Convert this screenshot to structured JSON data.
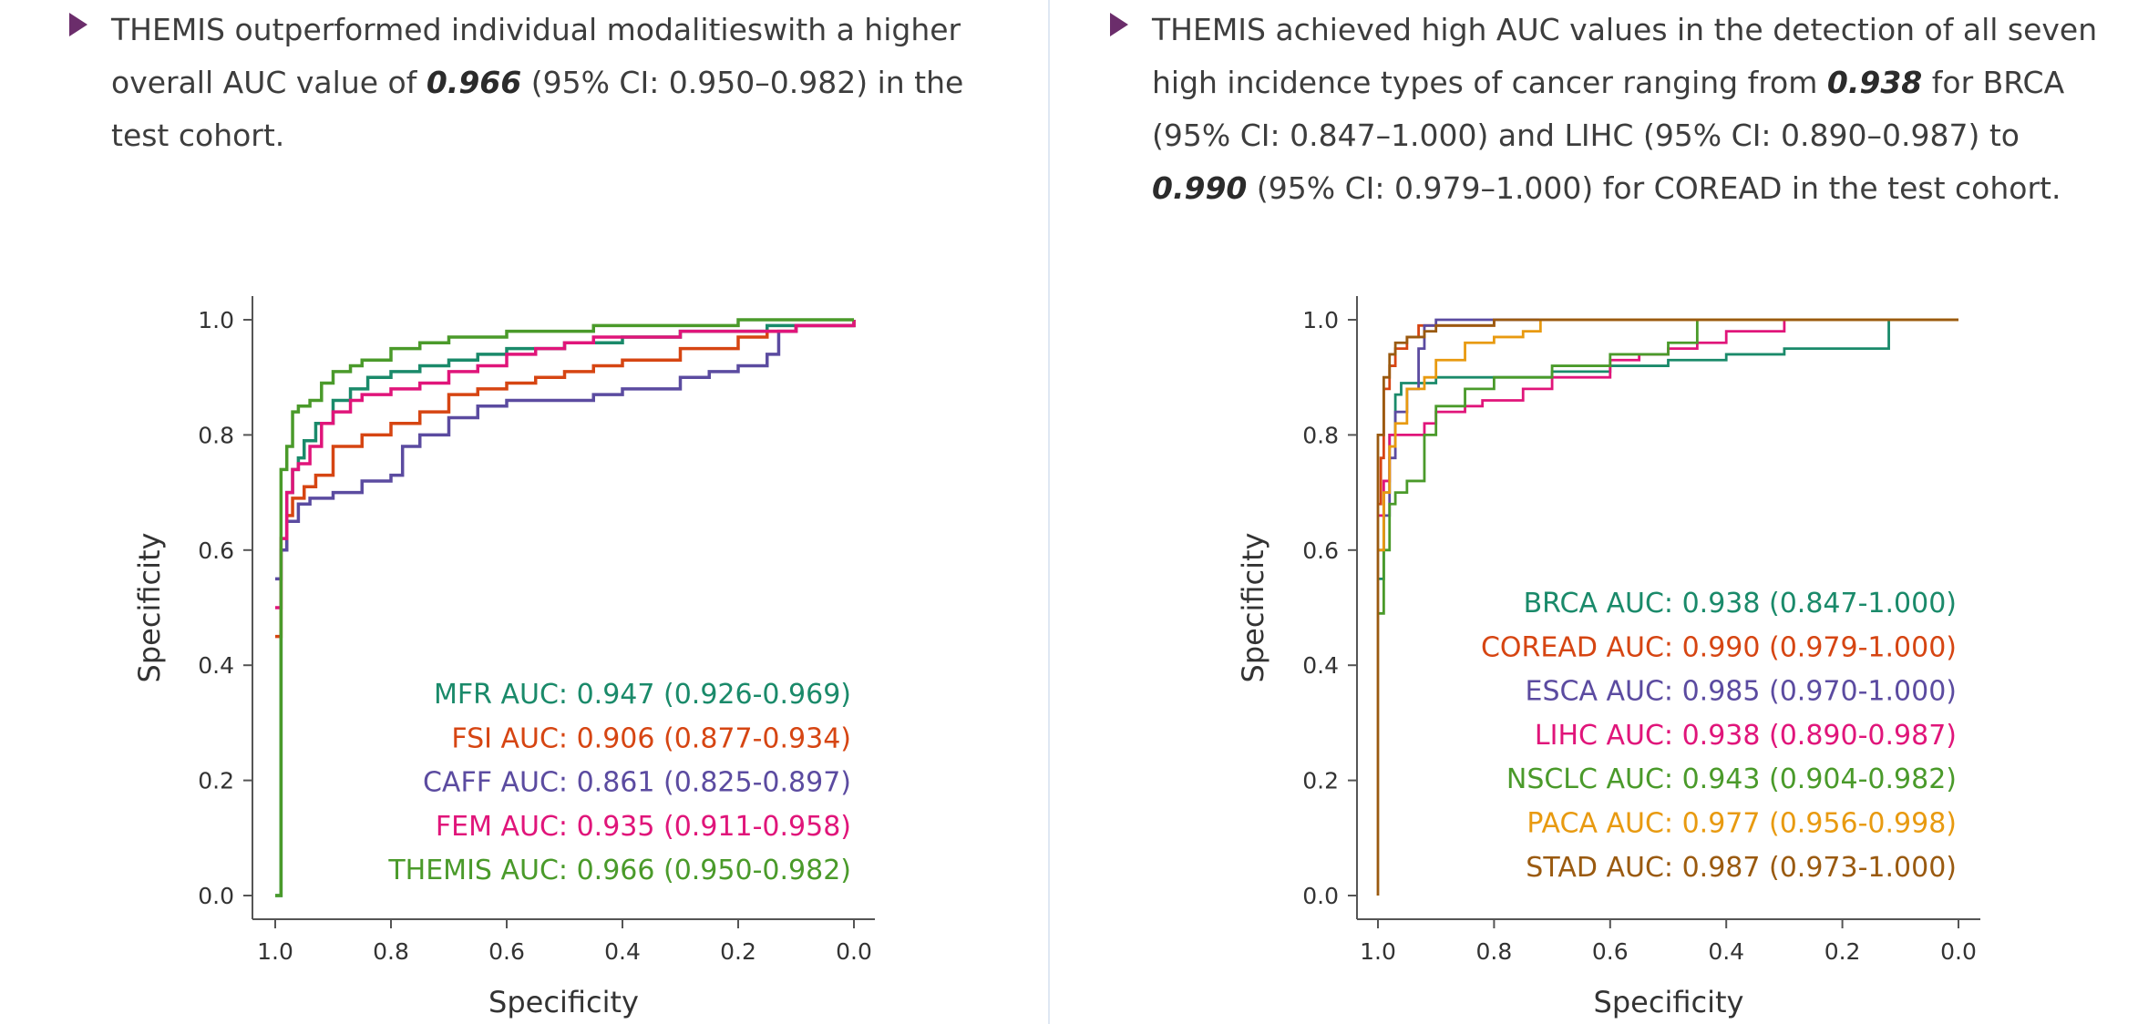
{
  "left": {
    "text_parts": [
      "THEMIS outperformed individual modalitieswith a higher overall AUC value of ",
      "0.966",
      " (95% CI: 0.950–0.982) in the test cohort."
    ]
  },
  "right": {
    "text_parts": [
      "THEMIS achieved high AUC values in the detection of all seven high incidence types of cancer ranging from ",
      "0.938",
      " for BRCA (95% CI: 0.847–1.000) and LIHC (95% CI: 0.890–0.987) to ",
      "0.990",
      " (95% CI: 0.979–1.000) for COREAD in the test cohort."
    ]
  },
  "chart_data": [
    {
      "type": "line",
      "xlabel": "Specificity",
      "ylabel": "Specificity",
      "xlim": [
        1.0,
        0.0
      ],
      "ylim": [
        0.0,
        1.0
      ],
      "xticks": [
        "1.0",
        "0.8",
        "0.6",
        "0.4",
        "0.2",
        "0.0"
      ],
      "yticks": [
        "0.0",
        "0.2",
        "0.4",
        "0.6",
        "0.8",
        "1.0"
      ],
      "legend_position": "bottom-right",
      "series": [
        {
          "name": "MFR",
          "label": "MFR AUC: 0.947 (0.926-0.969)",
          "color": "#1a8a6a",
          "x": [
            1.0,
            0.99,
            0.98,
            0.97,
            0.96,
            0.95,
            0.93,
            0.9,
            0.87,
            0.84,
            0.8,
            0.75,
            0.7,
            0.65,
            0.6,
            0.5,
            0.4,
            0.3,
            0.2,
            0.15,
            0.1,
            0.0
          ],
          "y": [
            0.0,
            0.6,
            0.7,
            0.74,
            0.76,
            0.79,
            0.82,
            0.86,
            0.88,
            0.9,
            0.91,
            0.92,
            0.93,
            0.94,
            0.95,
            0.96,
            0.97,
            0.98,
            0.98,
            0.99,
            0.99,
            1.0
          ]
        },
        {
          "name": "FSI",
          "label": "FSI AUC: 0.906 (0.877-0.934)",
          "color": "#d64512",
          "x": [
            1.0,
            0.99,
            0.98,
            0.97,
            0.95,
            0.93,
            0.9,
            0.85,
            0.8,
            0.75,
            0.7,
            0.65,
            0.6,
            0.55,
            0.5,
            0.45,
            0.4,
            0.3,
            0.2,
            0.15,
            0.1,
            0.0
          ],
          "y": [
            0.45,
            0.6,
            0.66,
            0.69,
            0.71,
            0.73,
            0.78,
            0.8,
            0.82,
            0.84,
            0.87,
            0.88,
            0.89,
            0.9,
            0.91,
            0.92,
            0.93,
            0.95,
            0.97,
            0.98,
            0.99,
            1.0
          ]
        },
        {
          "name": "CAFF",
          "label": "CAFF AUC: 0.861 (0.825-0.897)",
          "color": "#5b4ba0",
          "x": [
            1.0,
            0.99,
            0.98,
            0.96,
            0.94,
            0.92,
            0.9,
            0.85,
            0.8,
            0.78,
            0.75,
            0.7,
            0.65,
            0.6,
            0.55,
            0.5,
            0.45,
            0.4,
            0.3,
            0.25,
            0.2,
            0.15,
            0.13,
            0.1,
            0.05,
            0.0
          ],
          "y": [
            0.55,
            0.6,
            0.65,
            0.68,
            0.69,
            0.69,
            0.7,
            0.72,
            0.73,
            0.78,
            0.8,
            0.83,
            0.85,
            0.86,
            0.86,
            0.86,
            0.87,
            0.88,
            0.9,
            0.91,
            0.92,
            0.94,
            0.98,
            0.99,
            0.99,
            0.99
          ]
        },
        {
          "name": "FEM",
          "label": "FEM AUC: 0.935 (0.911-0.958)",
          "color": "#e0157a",
          "x": [
            1.0,
            0.99,
            0.98,
            0.97,
            0.96,
            0.94,
            0.92,
            0.9,
            0.87,
            0.85,
            0.8,
            0.75,
            0.7,
            0.65,
            0.6,
            0.55,
            0.5,
            0.45,
            0.4,
            0.3,
            0.2,
            0.1,
            0.0
          ],
          "y": [
            0.5,
            0.62,
            0.7,
            0.74,
            0.75,
            0.78,
            0.82,
            0.84,
            0.86,
            0.87,
            0.88,
            0.89,
            0.91,
            0.92,
            0.94,
            0.95,
            0.96,
            0.97,
            0.97,
            0.98,
            0.98,
            0.99,
            1.0
          ]
        },
        {
          "name": "THEMIS",
          "label": "THEMIS AUC: 0.966 (0.950-0.982)",
          "color": "#4a9a2a",
          "x": [
            1.0,
            0.99,
            0.98,
            0.97,
            0.96,
            0.94,
            0.92,
            0.9,
            0.87,
            0.85,
            0.8,
            0.75,
            0.7,
            0.6,
            0.5,
            0.45,
            0.4,
            0.3,
            0.2,
            0.1,
            0.0
          ],
          "y": [
            0.0,
            0.74,
            0.78,
            0.84,
            0.85,
            0.86,
            0.89,
            0.91,
            0.92,
            0.93,
            0.95,
            0.96,
            0.97,
            0.98,
            0.98,
            0.99,
            0.99,
            0.99,
            1.0,
            1.0,
            1.0
          ]
        }
      ]
    },
    {
      "type": "line",
      "xlabel": "Specificity",
      "ylabel": "Specificity",
      "xlim": [
        1.0,
        0.0
      ],
      "ylim": [
        0.0,
        1.0
      ],
      "xticks": [
        "1.0",
        "0.8",
        "0.6",
        "0.4",
        "0.2",
        "0.0"
      ],
      "yticks": [
        "0.0",
        "0.2",
        "0.4",
        "0.6",
        "0.8",
        "1.0"
      ],
      "legend_position": "right",
      "series": [
        {
          "name": "BRCA",
          "label": "BRCA AUC: 0.938 (0.847-1.000)",
          "color": "#1a8a6a",
          "x": [
            1.0,
            0.99,
            0.98,
            0.97,
            0.96,
            0.9,
            0.8,
            0.7,
            0.6,
            0.5,
            0.4,
            0.3,
            0.2,
            0.12,
            0.12,
            0.0
          ],
          "y": [
            0.55,
            0.7,
            0.8,
            0.87,
            0.89,
            0.9,
            0.9,
            0.91,
            0.92,
            0.93,
            0.94,
            0.95,
            0.95,
            0.95,
            1.0,
            1.0
          ]
        },
        {
          "name": "COREAD",
          "label": "COREAD AUC: 0.990 (0.979-1.000)",
          "color": "#d64512",
          "x": [
            1.0,
            0.995,
            0.99,
            0.98,
            0.97,
            0.95,
            0.93,
            0.9,
            0.8,
            0.7,
            0.5,
            0.3,
            0.0
          ],
          "y": [
            0.68,
            0.76,
            0.88,
            0.92,
            0.95,
            0.97,
            0.99,
            0.99,
            1.0,
            1.0,
            1.0,
            1.0,
            1.0
          ]
        },
        {
          "name": "ESCA",
          "label": "ESCA AUC: 0.985 (0.970-1.000)",
          "color": "#5b4ba0",
          "x": [
            1.0,
            0.99,
            0.98,
            0.97,
            0.95,
            0.93,
            0.92,
            0.9,
            0.85,
            0.8,
            0.6,
            0.4,
            0.2,
            0.0
          ],
          "y": [
            0.6,
            0.66,
            0.76,
            0.84,
            0.88,
            0.95,
            0.99,
            1.0,
            1.0,
            1.0,
            1.0,
            1.0,
            1.0,
            1.0
          ]
        },
        {
          "name": "LIHC",
          "label": "LIHC AUC: 0.938 (0.890-0.987)",
          "color": "#e0157a",
          "x": [
            1.0,
            0.99,
            0.98,
            0.95,
            0.92,
            0.9,
            0.85,
            0.82,
            0.8,
            0.75,
            0.7,
            0.6,
            0.55,
            0.5,
            0.45,
            0.4,
            0.3,
            0.2,
            0.0
          ],
          "y": [
            0.66,
            0.72,
            0.8,
            0.8,
            0.82,
            0.84,
            0.85,
            0.86,
            0.86,
            0.88,
            0.9,
            0.93,
            0.94,
            0.95,
            0.96,
            0.98,
            1.0,
            1.0,
            1.0
          ]
        },
        {
          "name": "NSCLC",
          "label": "NSCLC AUC: 0.943 (0.904-0.982)",
          "color": "#4a9a2a",
          "x": [
            1.0,
            0.99,
            0.98,
            0.97,
            0.95,
            0.92,
            0.9,
            0.85,
            0.8,
            0.7,
            0.6,
            0.5,
            0.45,
            0.45,
            0.3,
            0.0
          ],
          "y": [
            0.49,
            0.6,
            0.68,
            0.7,
            0.72,
            0.8,
            0.85,
            0.88,
            0.9,
            0.92,
            0.94,
            0.96,
            0.98,
            1.0,
            1.0,
            1.0
          ]
        },
        {
          "name": "PACA",
          "label": "PACA AUC: 0.977 (0.956-0.998)",
          "color": "#e89a10",
          "x": [
            1.0,
            0.99,
            0.98,
            0.97,
            0.95,
            0.92,
            0.9,
            0.85,
            0.8,
            0.75,
            0.72,
            0.7,
            0.5,
            0.0
          ],
          "y": [
            0.6,
            0.7,
            0.78,
            0.82,
            0.88,
            0.9,
            0.93,
            0.96,
            0.97,
            0.98,
            1.0,
            1.0,
            1.0,
            1.0
          ]
        },
        {
          "name": "STAD",
          "label": "STAD AUC: 0.987 (0.973-1.000)",
          "color": "#9a5a10",
          "x": [
            1.0,
            1.0,
            0.99,
            0.98,
            0.97,
            0.95,
            0.92,
            0.9,
            0.8,
            0.6,
            0.0
          ],
          "y": [
            0.0,
            0.8,
            0.9,
            0.94,
            0.96,
            0.97,
            0.98,
            0.99,
            1.0,
            1.0,
            1.0
          ]
        }
      ]
    }
  ]
}
